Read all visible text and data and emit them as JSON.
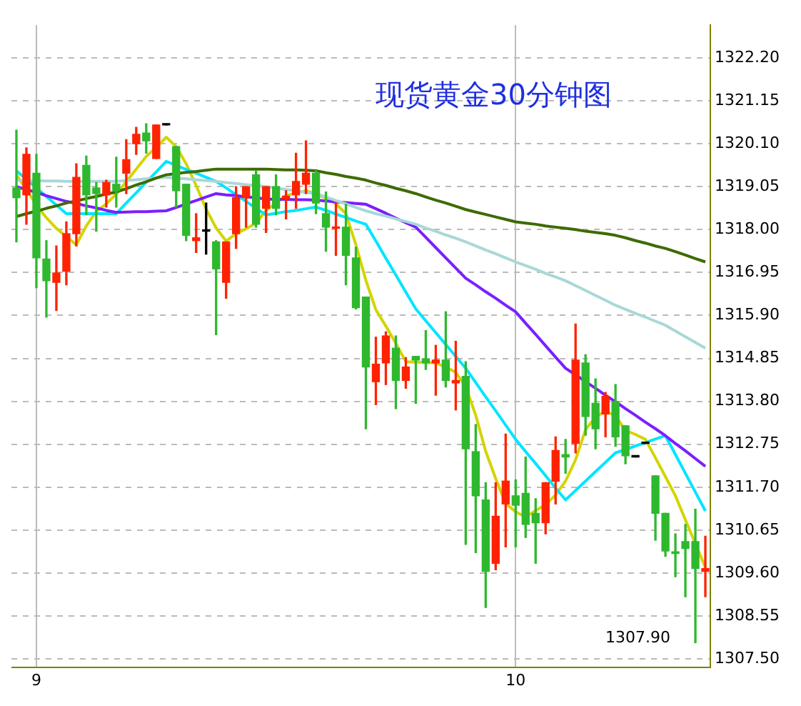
{
  "chart_data": {
    "type": "candlestick",
    "title": "现货黄金30分钟图",
    "categories": [
      null,
      null,
      "9",
      null,
      null,
      null,
      null,
      null,
      null,
      null,
      null,
      null,
      null,
      null,
      null,
      null,
      null,
      null,
      null,
      null,
      null,
      null,
      null,
      null,
      null,
      null,
      null,
      null,
      null,
      null,
      null,
      null,
      null,
      null,
      null,
      null,
      null,
      null,
      null,
      null,
      null,
      null,
      null,
      null,
      null,
      null,
      null,
      null,
      null,
      null,
      "10",
      null,
      null,
      null,
      null,
      null,
      null,
      null,
      null,
      null,
      null,
      null,
      null,
      null,
      null,
      null,
      null,
      null,
      null,
      null
    ],
    "ohlc": [
      [
        1319.02,
        1320.43,
        1317.7,
        1318.78
      ],
      [
        1318.85,
        1320.0,
        1318.13,
        1319.84
      ],
      [
        1319.38,
        1319.84,
        1316.58,
        1317.31
      ],
      [
        1317.28,
        1317.73,
        1315.86,
        1316.75
      ],
      [
        1316.71,
        1317.6,
        1316.02,
        1316.94
      ],
      [
        1316.98,
        1318.19,
        1316.65,
        1317.9
      ],
      [
        1317.9,
        1319.61,
        1317.6,
        1319.28
      ],
      [
        1319.57,
        1319.8,
        1318.36,
        1318.85
      ],
      [
        1319.02,
        1319.15,
        1317.96,
        1318.88
      ],
      [
        1318.85,
        1319.21,
        1318.55,
        1319.15
      ],
      [
        1319.11,
        1319.77,
        1318.55,
        1318.95
      ],
      [
        1319.38,
        1320.2,
        1318.88,
        1319.71
      ],
      [
        1320.1,
        1320.5,
        1319.84,
        1320.33
      ],
      [
        1320.36,
        1320.59,
        1319.87,
        1320.17
      ],
      [
        1319.74,
        1320.56,
        1319.74,
        1320.56
      ],
      [
        1320.56,
        1320.56,
        1320.56,
        1320.56
      ],
      [
        1320.03,
        1320.03,
        1318.55,
        1318.95
      ],
      [
        1319.11,
        1319.11,
        1317.73,
        1317.86
      ],
      [
        1317.73,
        1318.39,
        1317.44,
        1317.8
      ],
      [
        1317.96,
        1318.65,
        1317.4,
        1317.96
      ],
      [
        1317.7,
        1317.73,
        1315.43,
        1317.04
      ],
      [
        1316.71,
        1317.7,
        1316.32,
        1317.7
      ],
      [
        1317.9,
        1319.05,
        1317.54,
        1318.78
      ],
      [
        1318.78,
        1319.05,
        1318.06,
        1319.05
      ],
      [
        1319.34,
        1319.44,
        1318.06,
        1318.13
      ],
      [
        1318.52,
        1319.05,
        1317.93,
        1319.05
      ],
      [
        1319.05,
        1319.34,
        1318.36,
        1318.52
      ],
      [
        1318.75,
        1318.95,
        1318.26,
        1318.82
      ],
      [
        1318.85,
        1319.87,
        1318.52,
        1319.18
      ],
      [
        1319.11,
        1320.17,
        1318.88,
        1319.38
      ],
      [
        1319.38,
        1319.44,
        1318.39,
        1318.65
      ],
      [
        1318.39,
        1318.92,
        1317.47,
        1318.06
      ],
      [
        1318.03,
        1318.65,
        1317.37,
        1318.06
      ],
      [
        1318.06,
        1318.62,
        1316.65,
        1317.37
      ],
      [
        1317.31,
        1317.57,
        1316.06,
        1316.09
      ],
      [
        1316.35,
        1316.35,
        1313.13,
        1314.64
      ],
      [
        1314.28,
        1315.37,
        1313.72,
        1314.71
      ],
      [
        1314.74,
        1315.5,
        1314.21,
        1315.4
      ],
      [
        1315.1,
        1315.4,
        1313.62,
        1314.31
      ],
      [
        1314.31,
        1314.87,
        1314.12,
        1314.64
      ],
      [
        1314.9,
        1314.9,
        1313.75,
        1314.81
      ],
      [
        1314.84,
        1315.53,
        1314.58,
        1314.74
      ],
      [
        1314.74,
        1315.17,
        1313.95,
        1314.81
      ],
      [
        1314.81,
        1315.99,
        1314.15,
        1314.31
      ],
      [
        1314.25,
        1315.27,
        1313.59,
        1314.31
      ],
      [
        1314.41,
        1314.77,
        1310.3,
        1312.64
      ],
      [
        1312.57,
        1313.23,
        1310.1,
        1311.49
      ],
      [
        1311.39,
        1311.81,
        1308.76,
        1309.64
      ],
      [
        1309.84,
        1311.81,
        1309.68,
        1310.99
      ],
      [
        1311.29,
        1313.0,
        1310.24,
        1311.85
      ],
      [
        1311.49,
        1311.88,
        1310.24,
        1311.26
      ],
      [
        1311.55,
        1312.44,
        1310.47,
        1310.79
      ],
      [
        1311.06,
        1311.42,
        1309.84,
        1310.83
      ],
      [
        1310.83,
        1311.81,
        1310.56,
        1311.81
      ],
      [
        1311.85,
        1312.93,
        1311.29,
        1312.6
      ],
      [
        1312.5,
        1312.87,
        1312.04,
        1312.44
      ],
      [
        1312.77,
        1315.69,
        1312.54,
        1314.81
      ],
      [
        1314.74,
        1314.94,
        1312.97,
        1313.43
      ],
      [
        1313.75,
        1314.35,
        1312.64,
        1313.13
      ],
      [
        1313.49,
        1314.02,
        1312.93,
        1313.92
      ],
      [
        1313.79,
        1314.21,
        1312.7,
        1312.93
      ],
      [
        1313.2,
        1313.2,
        1312.27,
        1312.47
      ],
      [
        1312.44,
        1312.44,
        1312.44,
        1312.44
      ],
      [
        1312.77,
        1312.77,
        1312.77,
        1312.77
      ],
      [
        1311.98,
        1311.98,
        1310.4,
        1311.06
      ],
      [
        1311.06,
        1311.06,
        1310.01,
        1310.14
      ],
      [
        1310.12,
        1310.56,
        1309.51,
        1310.08
      ],
      [
        1310.37,
        1310.79,
        1309.02,
        1310.2
      ],
      [
        1310.37,
        1311.16,
        1307.9,
        1309.71
      ],
      [
        1309.64,
        1310.5,
        1309.02,
        1309.71
      ]
    ],
    "colors": [
      "#2eb82e",
      "#ff2200",
      "#2eb82e",
      "#2eb82e",
      "#ff2200",
      "#ff2200",
      "#ff2200",
      "#2eb82e",
      "#2eb82e",
      "#ff2200",
      "#2eb82e",
      "#ff2200",
      "#ff2200",
      "#2eb82e",
      "#ff2200",
      "#000000",
      "#2eb82e",
      "#2eb82e",
      "#ff2200",
      "#000000",
      "#2eb82e",
      "#ff2200",
      "#ff2200",
      "#ff2200",
      "#2eb82e",
      "#ff2200",
      "#2eb82e",
      "#ff2200",
      "#ff2200",
      "#ff2200",
      "#2eb82e",
      "#2eb82e",
      "#ff2200",
      "#2eb82e",
      "#2eb82e",
      "#2eb82e",
      "#ff2200",
      "#ff2200",
      "#2eb82e",
      "#ff2200",
      "#2eb82e",
      "#2eb82e",
      "#ff2200",
      "#2eb82e",
      "#ff2200",
      "#2eb82e",
      "#2eb82e",
      "#2eb82e",
      "#ff2200",
      "#ff2200",
      "#2eb82e",
      "#2eb82e",
      "#2eb82e",
      "#ff2200",
      "#ff2200",
      "#2eb82e",
      "#ff2200",
      "#2eb82e",
      "#2eb82e",
      "#ff2200",
      "#2eb82e",
      "#2eb82e",
      "#000000",
      "#000000",
      "#2eb82e",
      "#2eb82e",
      "#2eb82e",
      "#2eb82e",
      "#2eb82e",
      "#ff2200"
    ],
    "series": [
      {
        "type": "line",
        "color": "#3d6b00",
        "values": [
          1318.32,
          1318.39,
          1318.45,
          1318.52,
          1318.58,
          1318.65,
          1318.7,
          1318.76,
          1318.81,
          1318.87,
          1318.92,
          1319.0,
          1319.09,
          1319.17,
          1319.26,
          1319.34,
          1319.37,
          1319.4,
          1319.42,
          1319.45,
          1319.48,
          1319.48,
          1319.48,
          1319.48,
          1319.48,
          1319.48,
          1319.47,
          1319.46,
          1319.46,
          1319.45,
          1319.44,
          1319.39,
          1319.35,
          1319.3,
          1319.26,
          1319.21,
          1319.14,
          1319.08,
          1319.01,
          1318.95,
          1318.88,
          1318.8,
          1318.72,
          1318.65,
          1318.57,
          1318.49,
          1318.43,
          1318.37,
          1318.31,
          1318.25,
          1318.19,
          1318.16,
          1318.13,
          1318.09,
          1318.06,
          1318.03,
          1318.0,
          1317.96,
          1317.93,
          1317.9,
          1317.86,
          1317.8,
          1317.73,
          1317.67,
          1317.6,
          1317.54,
          1317.46,
          1317.38,
          1317.29,
          1317.21
        ]
      },
      {
        "type": "line",
        "color": "#a8d8d8",
        "values": [
          1319.21,
          1319.2,
          1319.2,
          1319.19,
          1319.19,
          1319.18,
          1319.18,
          1319.18,
          1319.18,
          1319.18,
          1319.18,
          1319.2,
          1319.22,
          1319.24,
          1319.26,
          1319.28,
          1319.26,
          1319.24,
          1319.22,
          1319.2,
          1319.18,
          1319.15,
          1319.13,
          1319.1,
          1319.08,
          1319.05,
          1319.02,
          1318.98,
          1318.95,
          1318.91,
          1318.88,
          1318.8,
          1318.71,
          1318.63,
          1318.54,
          1318.46,
          1318.39,
          1318.33,
          1318.26,
          1318.2,
          1318.13,
          1318.04,
          1317.96,
          1317.87,
          1317.79,
          1317.7,
          1317.6,
          1317.5,
          1317.41,
          1317.31,
          1317.21,
          1317.12,
          1317.03,
          1316.93,
          1316.84,
          1316.75,
          1316.63,
          1316.51,
          1316.39,
          1316.27,
          1316.15,
          1316.05,
          1315.95,
          1315.86,
          1315.76,
          1315.66,
          1315.52,
          1315.38,
          1315.24,
          1315.1
        ]
      },
      {
        "type": "line",
        "color": "#7a1fff",
        "values": [
          1319.05,
          1318.98,
          1318.91,
          1318.83,
          1318.76,
          1318.69,
          1318.64,
          1318.58,
          1318.53,
          1318.47,
          1318.42,
          1318.43,
          1318.44,
          1318.44,
          1318.45,
          1318.46,
          1318.54,
          1318.63,
          1318.71,
          1318.8,
          1318.88,
          1318.85,
          1318.83,
          1318.8,
          1318.78,
          1318.75,
          1318.74,
          1318.74,
          1318.73,
          1318.73,
          1318.72,
          1318.7,
          1318.68,
          1318.66,
          1318.64,
          1318.62,
          1318.51,
          1318.4,
          1318.28,
          1318.17,
          1318.06,
          1317.81,
          1317.56,
          1317.31,
          1317.06,
          1316.81,
          1316.65,
          1316.48,
          1316.32,
          1316.15,
          1315.99,
          1315.71,
          1315.44,
          1315.16,
          1314.88,
          1314.61,
          1314.45,
          1314.28,
          1314.12,
          1313.95,
          1313.79,
          1313.62,
          1313.46,
          1313.29,
          1313.13,
          1312.96,
          1312.77,
          1312.59,
          1312.4,
          1312.21
        ]
      },
      {
        "type": "line",
        "color": "#00e5ff",
        "values": [
          1319.44,
          1319.23,
          1319.02,
          1318.81,
          1318.6,
          1318.39,
          1318.39,
          1318.39,
          1318.39,
          1318.39,
          1318.39,
          1318.65,
          1318.9,
          1319.16,
          1319.41,
          1319.67,
          1319.57,
          1319.47,
          1319.38,
          1319.28,
          1319.18,
          1319.02,
          1318.85,
          1318.69,
          1318.52,
          1318.36,
          1318.4,
          1318.44,
          1318.47,
          1318.51,
          1318.55,
          1318.47,
          1318.38,
          1318.3,
          1318.21,
          1318.13,
          1317.72,
          1317.3,
          1316.89,
          1316.47,
          1316.06,
          1315.77,
          1315.48,
          1315.19,
          1314.9,
          1314.61,
          1314.26,
          1313.91,
          1313.57,
          1313.22,
          1312.87,
          1312.57,
          1312.28,
          1311.98,
          1311.68,
          1311.39,
          1311.62,
          1311.85,
          1312.08,
          1312.31,
          1312.54,
          1312.62,
          1312.71,
          1312.79,
          1312.88,
          1312.96,
          1312.5,
          1312.04,
          1311.58,
          1311.12
        ]
      },
      {
        "type": "line",
        "color": "#d4d400",
        "values": [
          1319.34,
          1318.98,
          1318.6,
          1318.29,
          1318.03,
          1317.83,
          1317.63,
          1318.09,
          1318.45,
          1318.63,
          1318.87,
          1319.17,
          1319.48,
          1319.79,
          1320.01,
          1320.26,
          1320.03,
          1319.61,
          1319.08,
          1318.5,
          1318.04,
          1317.72,
          1317.9,
          1318.02,
          1318.16,
          1318.47,
          1318.65,
          1318.83,
          1318.9,
          1318.95,
          1318.87,
          1318.77,
          1318.63,
          1318.39,
          1317.63,
          1316.76,
          1316.04,
          1315.64,
          1315.22,
          1314.77,
          1314.76,
          1314.75,
          1314.74,
          1314.64,
          1314.51,
          1314.16,
          1313.46,
          1312.58,
          1311.91,
          1311.3,
          1311.1,
          1310.97,
          1311.13,
          1311.27,
          1311.51,
          1311.85,
          1312.37,
          1313.11,
          1313.41,
          1313.57,
          1313.44,
          1313.09,
          1312.99,
          1312.87,
          1312.42,
          1311.96,
          1311.49,
          1310.9,
          1310.32,
          1309.74
        ]
      }
    ],
    "annotations": [
      "1307.90"
    ],
    "ylim": [
      1307.3,
      1323.0
    ],
    "yticks": [
      {
        "value": 1307.5,
        "label": "1307.50"
      },
      {
        "value": 1308.55,
        "label": "1308.55"
      },
      {
        "value": 1309.6,
        "label": "1309.60"
      },
      {
        "value": 1310.65,
        "label": "1310.65"
      },
      {
        "value": 1311.7,
        "label": "1311.70"
      },
      {
        "value": 1312.75,
        "label": "1312.75"
      },
      {
        "value": 1313.8,
        "label": "1313.80"
      },
      {
        "value": 1314.85,
        "label": "1314.85"
      },
      {
        "value": 1315.9,
        "label": "1315.90"
      },
      {
        "value": 1316.95,
        "label": "1316.95"
      },
      {
        "value": 1318.0,
        "label": "1318.00"
      },
      {
        "value": 1319.05,
        "label": "1319.05"
      },
      {
        "value": 1320.1,
        "label": "1320.10"
      },
      {
        "value": 1321.15,
        "label": "1321.15"
      },
      {
        "value": 1322.2,
        "label": "1322.20"
      }
    ],
    "grid": true
  }
}
